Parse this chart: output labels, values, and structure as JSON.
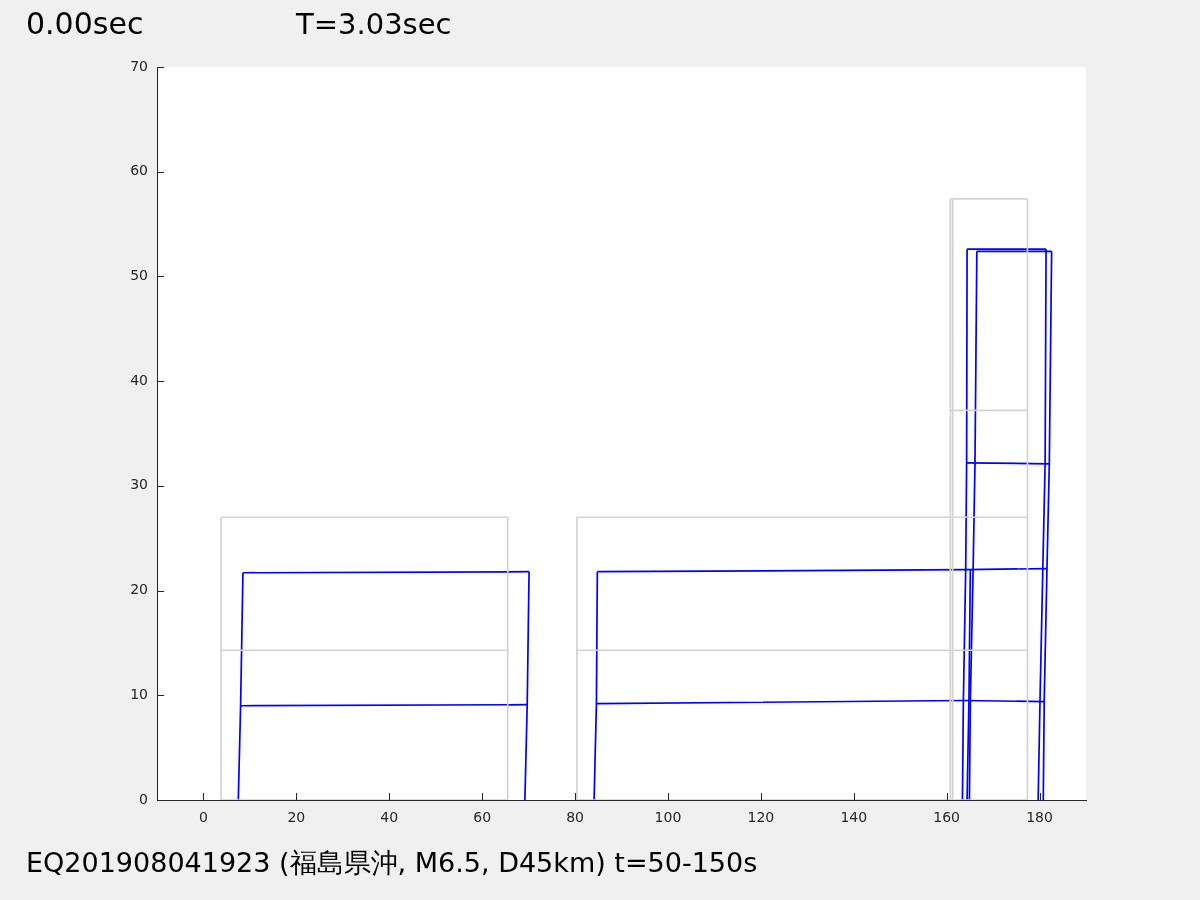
{
  "chart_data": {
    "type": "line",
    "title": "0.00sec",
    "subtitle": "T=3.03sec",
    "annotations": [
      "EQ201908041923 (福島県沖, M6.5, D45km) t=50-150s"
    ],
    "xlim": [
      -10,
      190
    ],
    "xticks": [
      0,
      20,
      40,
      60,
      80,
      100,
      120,
      140,
      160,
      180
    ],
    "ylim": [
      0,
      70
    ],
    "yticks": [
      0,
      10,
      20,
      30,
      40,
      50,
      60,
      70
    ],
    "line_style": "solid",
    "series": [
      {
        "color": "#d3d3d3",
        "x": [
          3.8,
          3.8
        ],
        "values": [
          0,
          27
        ]
      },
      {
        "color": "#d3d3d3",
        "x": [
          65.5,
          65.5
        ],
        "values": [
          0,
          27
        ]
      },
      {
        "color": "#d3d3d3",
        "x": [
          3.8,
          65.5
        ],
        "values": [
          0,
          0
        ]
      },
      {
        "color": "#d3d3d3",
        "x": [
          3.8,
          65.5
        ],
        "values": [
          14.3,
          14.3
        ]
      },
      {
        "color": "#d3d3d3",
        "x": [
          3.8,
          65.5
        ],
        "values": [
          27,
          27
        ]
      },
      {
        "color": "#d3d3d3",
        "x": [
          80.4,
          80.4
        ],
        "values": [
          0,
          27
        ]
      },
      {
        "color": "#d3d3d3",
        "x": [
          80.4,
          177.4
        ],
        "values": [
          0,
          0
        ]
      },
      {
        "color": "#d3d3d3",
        "x": [
          80.4,
          177.4
        ],
        "values": [
          14.3,
          14.3
        ]
      },
      {
        "color": "#d3d3d3",
        "x": [
          80.4,
          177.4
        ],
        "values": [
          27,
          27
        ]
      },
      {
        "color": "#d3d3d3",
        "x": [
          160.8,
          160.8
        ],
        "values": [
          0,
          57.4
        ]
      },
      {
        "color": "#d3d3d3",
        "x": [
          161.3,
          161.3
        ],
        "values": [
          0,
          57.4
        ]
      },
      {
        "color": "#d3d3d3",
        "x": [
          177.4,
          177.4
        ],
        "values": [
          0,
          57.4
        ]
      },
      {
        "color": "#d3d3d3",
        "x": [
          160.8,
          177.4
        ],
        "values": [
          37.2,
          37.2
        ]
      },
      {
        "color": "#d3d3d3",
        "x": [
          160.8,
          177.4
        ],
        "values": [
          57.4,
          57.4
        ]
      },
      {
        "color": "#0000ff",
        "x": [
          7.5,
          8.0,
          8.5
        ],
        "values": [
          0,
          9.0,
          21.7
        ]
      },
      {
        "color": "#0000ff",
        "x": [
          69.2,
          69.7,
          70.1
        ],
        "values": [
          0,
          9.1,
          21.8
        ]
      },
      {
        "color": "#0000ff",
        "x": [
          8.0,
          69.7
        ],
        "values": [
          9.0,
          9.1
        ]
      },
      {
        "color": "#0000ff",
        "x": [
          8.5,
          70.1
        ],
        "values": [
          21.7,
          21.8
        ]
      },
      {
        "color": "#0000ff",
        "x": [
          84.1,
          84.6,
          84.8
        ],
        "values": [
          0,
          9.2,
          21.8
        ]
      },
      {
        "color": "#0000ff",
        "x": [
          84.6,
          163.6,
          181.0
        ],
        "values": [
          9.2,
          9.5,
          9.4
        ]
      },
      {
        "color": "#0000ff",
        "x": [
          84.8,
          164.1,
          181.6
        ],
        "values": [
          21.8,
          22.0,
          22.1
        ]
      },
      {
        "color": "#0000ff",
        "x": [
          163.4,
          163.6,
          164.1,
          164.3,
          164.4
        ],
        "values": [
          0,
          9.5,
          22.0,
          32.2,
          52.6
        ]
      },
      {
        "color": "#0000ff",
        "x": [
          179.7,
          180.1,
          180.7,
          181.2,
          181.4
        ],
        "values": [
          0,
          9.5,
          22.0,
          32.2,
          52.6
        ]
      },
      {
        "color": "#0000ff",
        "x": [
          164.4,
          181.4
        ],
        "values": [
          52.6,
          52.6
        ]
      },
      {
        "color": "#0000ff",
        "x": [
          164.9,
          165.1,
          165.7,
          166.1,
          166.5
        ],
        "values": [
          0,
          9.4,
          22.1,
          32.1,
          52.4
        ]
      },
      {
        "color": "#0000ff",
        "x": [
          180.8,
          181.0,
          181.6,
          182.1,
          182.6
        ],
        "values": [
          0,
          9.4,
          22.1,
          32.1,
          52.4
        ]
      },
      {
        "color": "#0000ff",
        "x": [
          166.5,
          182.6
        ],
        "values": [
          52.4,
          52.4
        ]
      },
      {
        "color": "#0000ff",
        "x": [
          164.3,
          182.1
        ],
        "values": [
          32.2,
          32.1
        ]
      },
      {
        "color": "#0000ff",
        "x": [
          164.4,
          164.8,
          165.1
        ],
        "values": [
          0,
          9.5,
          22.0
        ]
      }
    ]
  }
}
